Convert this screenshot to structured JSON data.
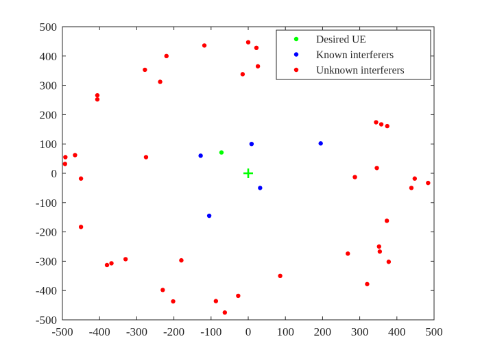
{
  "chart_data": {
    "type": "scatter",
    "title": "",
    "xlabel": "",
    "ylabel": "",
    "xlim": [
      -500,
      500
    ],
    "ylim": [
      -500,
      500
    ],
    "xticks": [
      -500,
      -400,
      -300,
      -200,
      -100,
      0,
      100,
      200,
      300,
      400,
      500
    ],
    "yticks": [
      -500,
      -400,
      -300,
      -200,
      -100,
      0,
      100,
      200,
      300,
      400,
      500
    ],
    "grid": false,
    "legend_position": "top-right",
    "series": [
      {
        "name": "Desired UE",
        "color": "#00ff00",
        "points": [
          [
            -72,
            71
          ]
        ]
      },
      {
        "name": "Known interferers",
        "color": "#0000ff",
        "points": [
          [
            -128,
            60
          ],
          [
            9,
            100
          ],
          [
            195,
            102
          ],
          [
            32,
            -50
          ],
          [
            -105,
            -145
          ]
        ]
      },
      {
        "name": "Unknown interferers",
        "color": "#ff0000",
        "points": [
          [
            -118,
            436
          ],
          [
            0,
            447
          ],
          [
            22,
            428
          ],
          [
            -220,
            400
          ],
          [
            -278,
            353
          ],
          [
            -237,
            312
          ],
          [
            -15,
            338
          ],
          [
            26,
            365
          ],
          [
            -406,
            266
          ],
          [
            -406,
            252
          ],
          [
            -492,
            55
          ],
          [
            -466,
            62
          ],
          [
            -275,
            55
          ],
          [
            -493,
            32
          ],
          [
            -450,
            -18
          ],
          [
            -450,
            -183
          ],
          [
            -380,
            -313
          ],
          [
            -368,
            -307
          ],
          [
            -330,
            -293
          ],
          [
            -180,
            -297
          ],
          [
            -230,
            -398
          ],
          [
            -202,
            -437
          ],
          [
            -87,
            -436
          ],
          [
            -63,
            -475
          ],
          [
            -27,
            -418
          ],
          [
            86,
            -350
          ],
          [
            287,
            -13
          ],
          [
            268,
            -274
          ],
          [
            320,
            -378
          ],
          [
            344,
            174
          ],
          [
            358,
            167
          ],
          [
            374,
            161
          ],
          [
            346,
            18
          ],
          [
            448,
            -18
          ],
          [
            484,
            -33
          ],
          [
            439,
            -50
          ],
          [
            373,
            -162
          ],
          [
            352,
            -250
          ],
          [
            354,
            -267
          ],
          [
            378,
            -302
          ]
        ]
      }
    ],
    "marker": {
      "symbol": "plus",
      "color": "#00ff00",
      "x": 0,
      "y": 0
    }
  }
}
